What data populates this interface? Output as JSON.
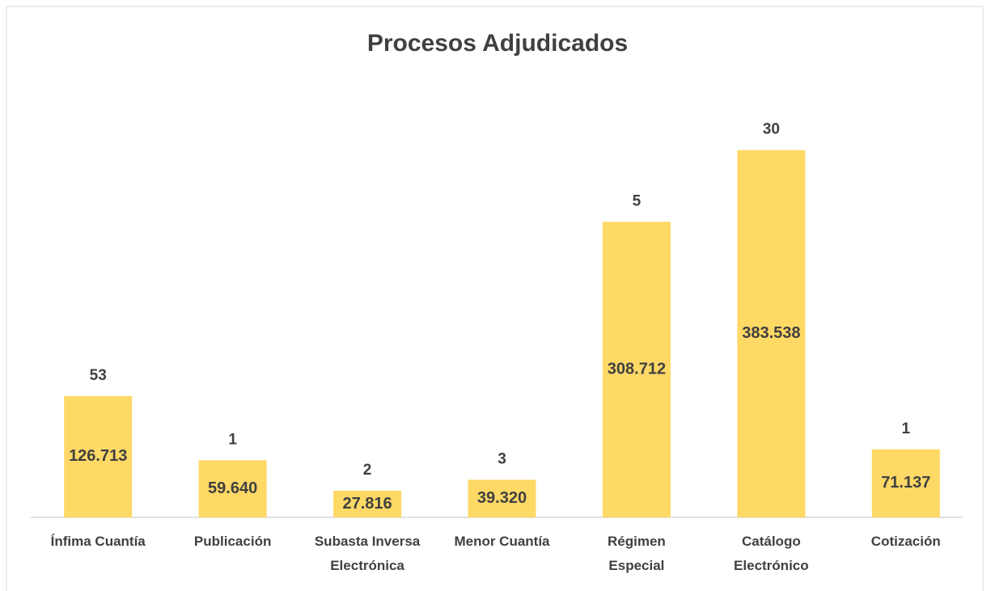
{
  "chart_data": {
    "type": "bar",
    "title": "Procesos Adjudicados",
    "categories": [
      "Ínfima Cuantía",
      "Publicación",
      "Subasta Inversa\nElectrónica",
      "Menor Cuantía",
      "Régimen\nEspecial",
      "Catálogo\nElectrónico",
      "Cotización"
    ],
    "values": [
      126713,
      59640,
      27816,
      39320,
      308712,
      383538,
      71137
    ],
    "value_labels": [
      "126.713",
      "59.640",
      "27.816",
      "39.320",
      "308.712",
      "383.538",
      "71.137"
    ],
    "process_counts": [
      53,
      1,
      2,
      3,
      5,
      30,
      1
    ],
    "color": "#ffd966",
    "ylim": [
      0,
      450000
    ]
  }
}
